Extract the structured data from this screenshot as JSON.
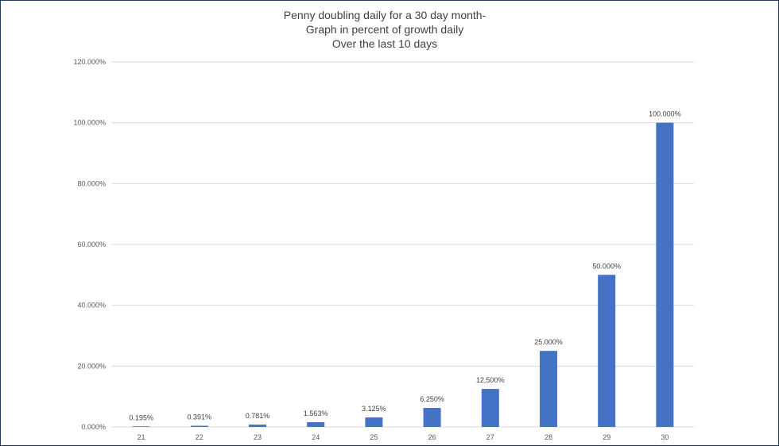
{
  "chart_data": {
    "type": "bar",
    "title_lines": [
      "Penny doubling daily for a 30 day month-",
      "Graph in percent of growth daily",
      "Over the last 10 days"
    ],
    "categories": [
      "21",
      "22",
      "23",
      "24",
      "25",
      "26",
      "27",
      "28",
      "29",
      "30"
    ],
    "values": [
      0.195,
      0.391,
      0.781,
      1.563,
      3.125,
      6.25,
      12.5,
      25,
      50,
      100
    ],
    "value_labels": [
      "0.195%",
      "0.391%",
      "0.781%",
      "1.563%",
      "3.125%",
      "6.250%",
      "12.500%",
      "25.000%",
      "50.000%",
      "100.000%"
    ],
    "y_ticks": [
      0,
      20,
      40,
      60,
      80,
      100,
      120
    ],
    "y_tick_labels": [
      "0.000%",
      "20.000%",
      "40.000%",
      "60.000%",
      "80.000%",
      "100.000%",
      "120.000%"
    ],
    "ylim": [
      0,
      120
    ],
    "grid": true,
    "legend": "none",
    "colors": {
      "bar": "#4472c4",
      "grid": "#d9d9d9",
      "frame": "#1f3864"
    }
  }
}
